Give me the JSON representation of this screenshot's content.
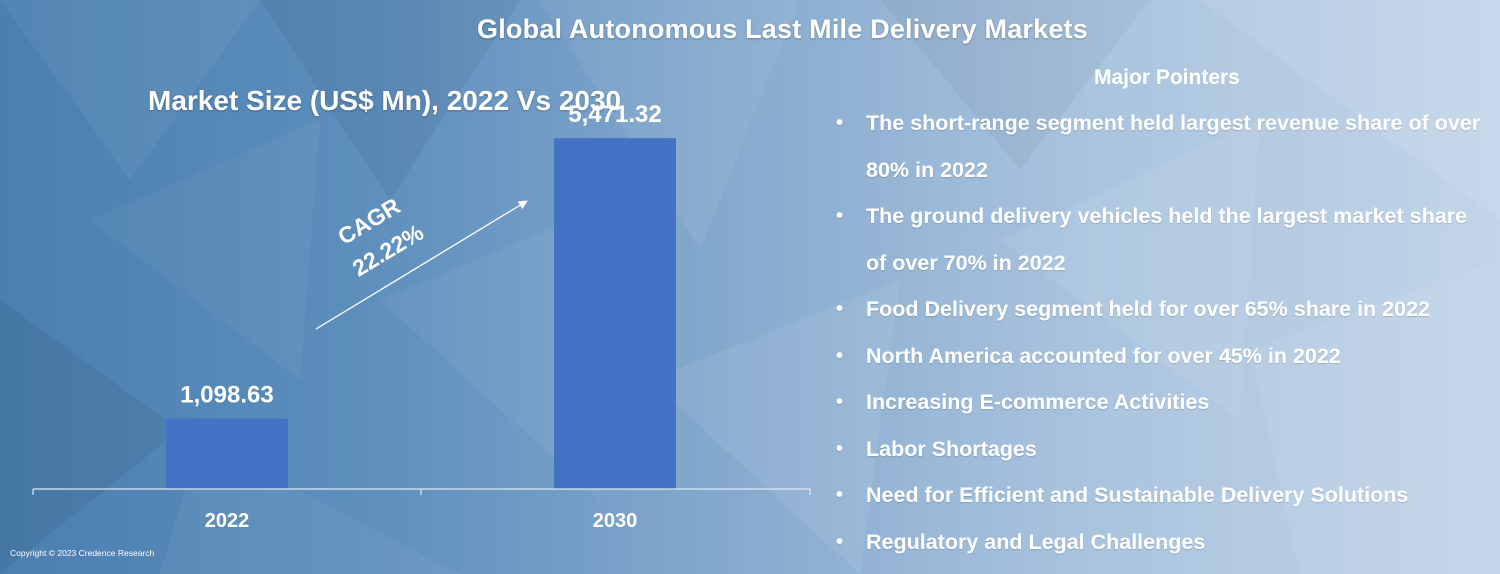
{
  "header": {
    "title": "Global Autonomous Last Mile Delivery Markets"
  },
  "chart_data": {
    "type": "bar",
    "title": "Market Size (US$ Mn), 2022 Vs 2030",
    "categories": [
      "2022",
      "2030"
    ],
    "values": [
      1098.63,
      5471.32
    ],
    "value_labels": [
      "1,098.63",
      "5,471.32"
    ],
    "xlabel": "",
    "ylabel": "",
    "ylim": [
      0,
      6800
    ],
    "grid": false,
    "bar_color": "#4472c4",
    "annotation": {
      "line1": "CAGR",
      "line2": "22.22%"
    }
  },
  "pointers": {
    "title": "Major Pointers",
    "bullet": "•",
    "items": [
      "The short-range segment held largest revenue share of over 80% in 2022",
      "The ground delivery vehicles held the largest market share of over 70% in 2022",
      "Food Delivery segment held for over 65% share in 2022",
      "North America accounted for over 45% in 2022",
      "Increasing E-commerce Activities",
      "Labor Shortages",
      "Need for Efficient and Sustainable Delivery Solutions",
      "Regulatory and Legal Challenges"
    ]
  },
  "footer": {
    "copyright": "Copyright © 2023 Credence Research"
  },
  "colors": {
    "bar": "#4472c4",
    "text": "#ffffff"
  }
}
